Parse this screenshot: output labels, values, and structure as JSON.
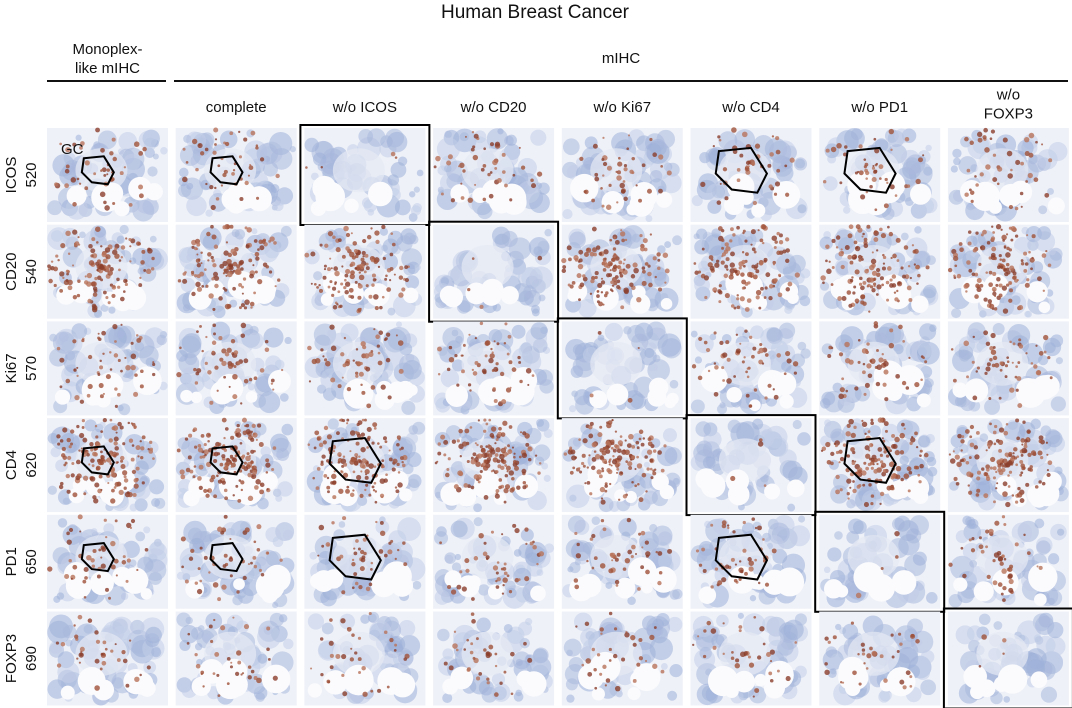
{
  "title": "Human Breast Cancer",
  "groups": [
    {
      "lines": [
        "Monoplex-",
        "like mIHC"
      ]
    },
    {
      "lines": [
        "mIHC"
      ]
    }
  ],
  "columns": [
    {
      "lines": [
        "complete"
      ]
    },
    {
      "lines": [
        "w/o ICOS"
      ]
    },
    {
      "lines": [
        "w/o CD20"
      ]
    },
    {
      "lines": [
        "w/o Ki67"
      ]
    },
    {
      "lines": [
        "w/o CD4"
      ]
    },
    {
      "lines": [
        "w/o PD1"
      ]
    },
    {
      "lines": [
        "w/o",
        "FOXP3"
      ]
    }
  ],
  "rows": [
    {
      "marker": "ICOS",
      "number": 520
    },
    {
      "marker": "CD20",
      "number": 540
    },
    {
      "marker": "Ki67",
      "number": 570
    },
    {
      "marker": "CD4",
      "number": 620
    },
    {
      "marker": "PD1",
      "number": 650
    },
    {
      "marker": "FOXP3",
      "number": 690
    }
  ],
  "annotation": "GC"
}
